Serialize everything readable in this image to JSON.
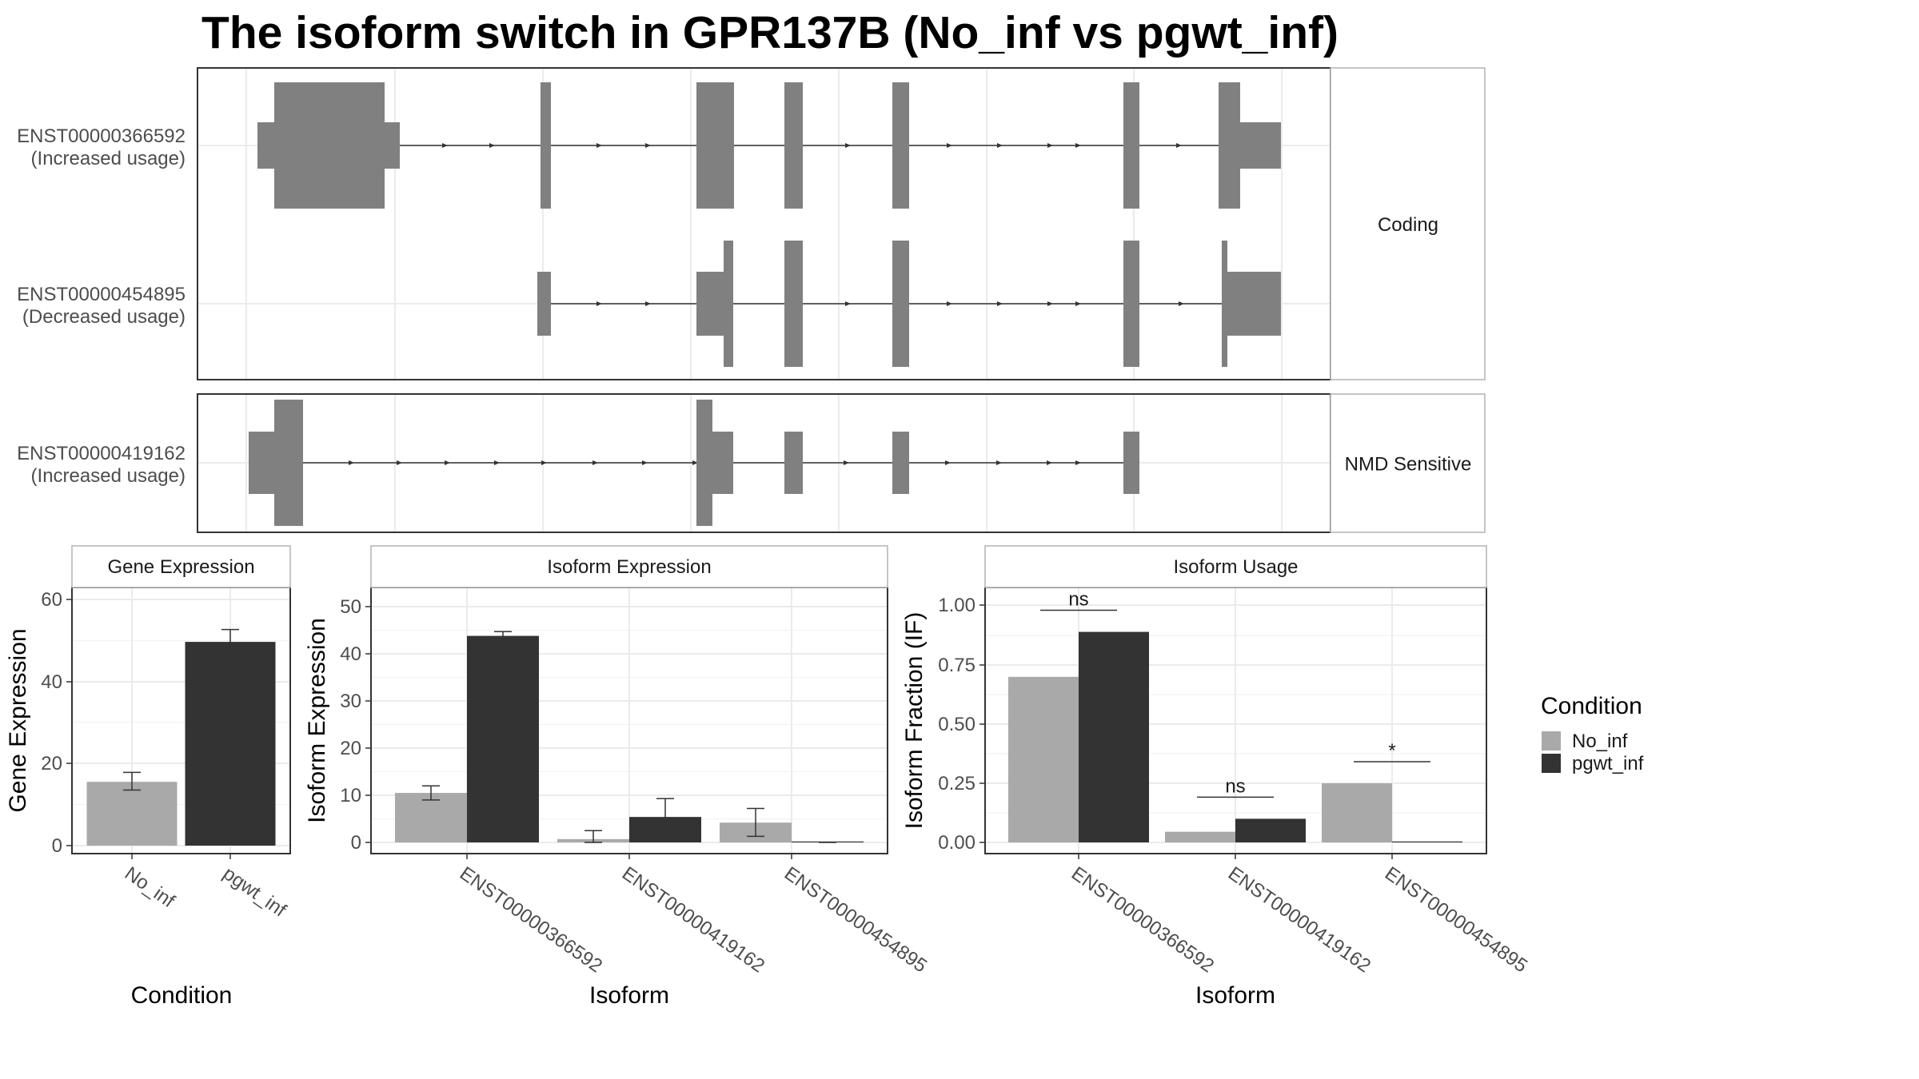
{
  "title": "The isoform switch in GPR137B (No_inf vs pgwt_inf)",
  "colors": {
    "no_inf": "#A9A9A9",
    "pgwt_inf": "#333333",
    "exon": "#808080",
    "intron": "#333333",
    "panel_border": "#333333",
    "strip_border": "#B3B3B3",
    "grid": "#EBEBEB"
  },
  "chart_data": [
    {
      "type": "gene-structure",
      "panels": [
        {
          "strip_label": "Coding",
          "isoforms": [
            {
              "id": "ENST00000366592",
              "usage": "(Increased usage)"
            },
            {
              "id": "ENST00000454895",
              "usage": "(Decreased usage)"
            }
          ]
        },
        {
          "strip_label": "NMD Sensitive",
          "isoforms": [
            {
              "id": "ENST00000419162",
              "usage": "(Increased usage)"
            }
          ]
        }
      ],
      "grid": true
    },
    {
      "type": "bar",
      "strip_title": "Gene Expression",
      "xlabel": "Condition",
      "ylabel": "Gene Expression",
      "categories": [
        "No_inf",
        "pgwt_inf"
      ],
      "values": [
        15.5,
        49.5
      ],
      "errors": [
        [
          13.5,
          17.8
        ],
        [
          46.5,
          52.5
        ]
      ],
      "colors": [
        "no_inf",
        "pgwt_inf"
      ],
      "ylim": [
        0,
        66
      ],
      "yticks": [
        "0",
        "20",
        "40",
        "60"
      ],
      "grid": true
    },
    {
      "type": "bar",
      "strip_title": "Isoform Expression",
      "xlabel": "Isoform",
      "ylabel": "Isoform Expression",
      "categories": [
        "ENST00000366592",
        "ENST00000419162",
        "ENST00000454895"
      ],
      "series": [
        {
          "values": [
            10.5,
            0.7,
            4.2
          ],
          "errors": [
            [
              9.0,
              12.0
            ],
            [
              0.0,
              2.5
            ],
            [
              1.3,
              7.2
            ]
          ],
          "color": "no_inf"
        },
        {
          "values": [
            43.8,
            5.4,
            0.0
          ],
          "errors": [
            [
              43.0,
              44.7
            ],
            [
              1.5,
              9.3
            ],
            [
              0.0,
              0.0
            ]
          ],
          "color": "pgwt_inf"
        }
      ],
      "ylim": [
        0,
        54
      ],
      "yticks": [
        "0",
        "10",
        "20",
        "30",
        "40",
        "50"
      ],
      "grid": true
    },
    {
      "type": "bar",
      "strip_title": "Isoform Usage",
      "xlabel": "Isoform",
      "ylabel": "Isoform Fraction (IF)",
      "categories": [
        "ENST00000366592",
        "ENST00000419162",
        "ENST00000454895"
      ],
      "series": [
        {
          "values": [
            0.7,
            0.045,
            0.25
          ],
          "color": "no_inf"
        },
        {
          "values": [
            0.89,
            0.1,
            0.0
          ],
          "color": "pgwt_inf"
        }
      ],
      "significance": [
        "ns",
        "ns",
        "*"
      ],
      "ylim": [
        0,
        1.08
      ],
      "yticks": [
        "0.00",
        "0.25",
        "0.50",
        "0.75",
        "1.00"
      ],
      "grid": true
    }
  ],
  "legend": {
    "title": "Condition",
    "items": [
      {
        "label": "No_inf",
        "color": "no_inf"
      },
      {
        "label": "pgwt_inf",
        "color": "pgwt_inf"
      }
    ],
    "placement": "right"
  }
}
